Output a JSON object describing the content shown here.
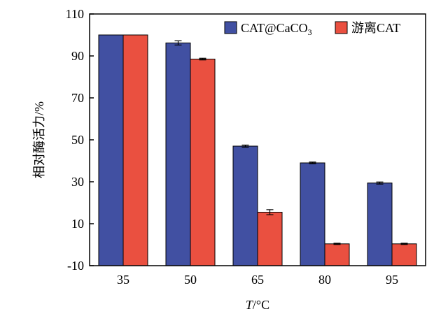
{
  "chart_data": {
    "type": "bar",
    "categories": [
      "35",
      "50",
      "65",
      "80",
      "95"
    ],
    "series": [
      {
        "name": "CAT@CaCO3",
        "values": [
          100,
          96.2,
          47.0,
          39.0,
          29.4
        ],
        "errors": [
          0,
          1.0,
          0.5,
          0.4,
          0.5
        ],
        "color": "#4150a2"
      },
      {
        "name": "游离CAT",
        "values": [
          100,
          88.5,
          15.5,
          0.4,
          0.4
        ],
        "errors": [
          0,
          0.4,
          1.2,
          0.3,
          0.3
        ],
        "color": "#ea5040"
      }
    ],
    "ylim": [
      -10,
      110
    ],
    "yticks": [
      "-10",
      "10",
      "30",
      "50",
      "70",
      "90",
      "110"
    ],
    "ylabel": "相对酶活力/%",
    "xlabel_italic": "T",
    "xlabel_unit": "/°C",
    "legend_name_main": "CAT@CaCO",
    "legend_name_sub": "3",
    "legend_placement": "top-right",
    "grid": false
  }
}
